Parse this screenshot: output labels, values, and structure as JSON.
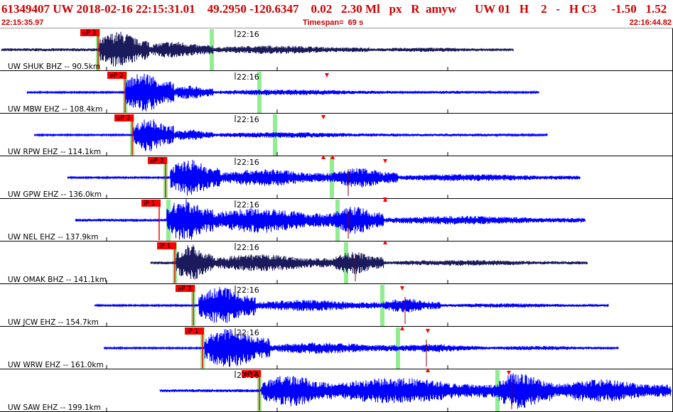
{
  "header": {
    "title": "61349407 UW 2018-02-16 22:15:31.01    49.2950 -120.6347    0.02   2.30 Ml   px   R  amyw      UW 01   H    2   -   H C3     -1.50   1.52",
    "start_time": "22:15:35.97",
    "timespan": "Timespan=  69 s",
    "end_time": "22:16:44.82"
  },
  "colors": {
    "blue": "#0000ff",
    "navy": "#1a1a5c",
    "pick": "#ff0000",
    "marker": "#90ee90",
    "header_text": "#cc0000"
  },
  "traces": [
    {
      "label": "UW SHUK BHZ -- 90.5km",
      "time": "22:16",
      "pick": "eP 2",
      "color": "navy"
    },
    {
      "label": "UW MBW EHZ -- 108.4km",
      "time": "22:16",
      "pick": "eP 2",
      "color": "blue"
    },
    {
      "label": "UW RPW EHZ -- 114.1km",
      "time": "22:16",
      "pick": "eP 2",
      "color": "blue"
    },
    {
      "label": "UW GPW EHZ -- 136.0km",
      "time": "22:16",
      "pick": "eP 2",
      "color": "blue"
    },
    {
      "label": "UW NEL EHZ -- 137.9km",
      "time": "22:16",
      "pick": "iP 1",
      "color": "blue"
    },
    {
      "label": "UW OMAK BHZ -- 141.1km",
      "time": "22:16",
      "pick": "iP 1",
      "color": "navy"
    },
    {
      "label": "UW JCW EHZ -- 154.7km",
      "time": "22:16",
      "pick": "eP 2",
      "color": "blue"
    },
    {
      "label": "UW WRW EHZ -- 161.0km",
      "time": "22:16",
      "pick": "iP 1",
      "color": "blue"
    },
    {
      "label": "UW SAW EHZ -- 199.1km",
      "time": "22:16",
      "pick": "eP 2",
      "color": "blue"
    }
  ]
}
